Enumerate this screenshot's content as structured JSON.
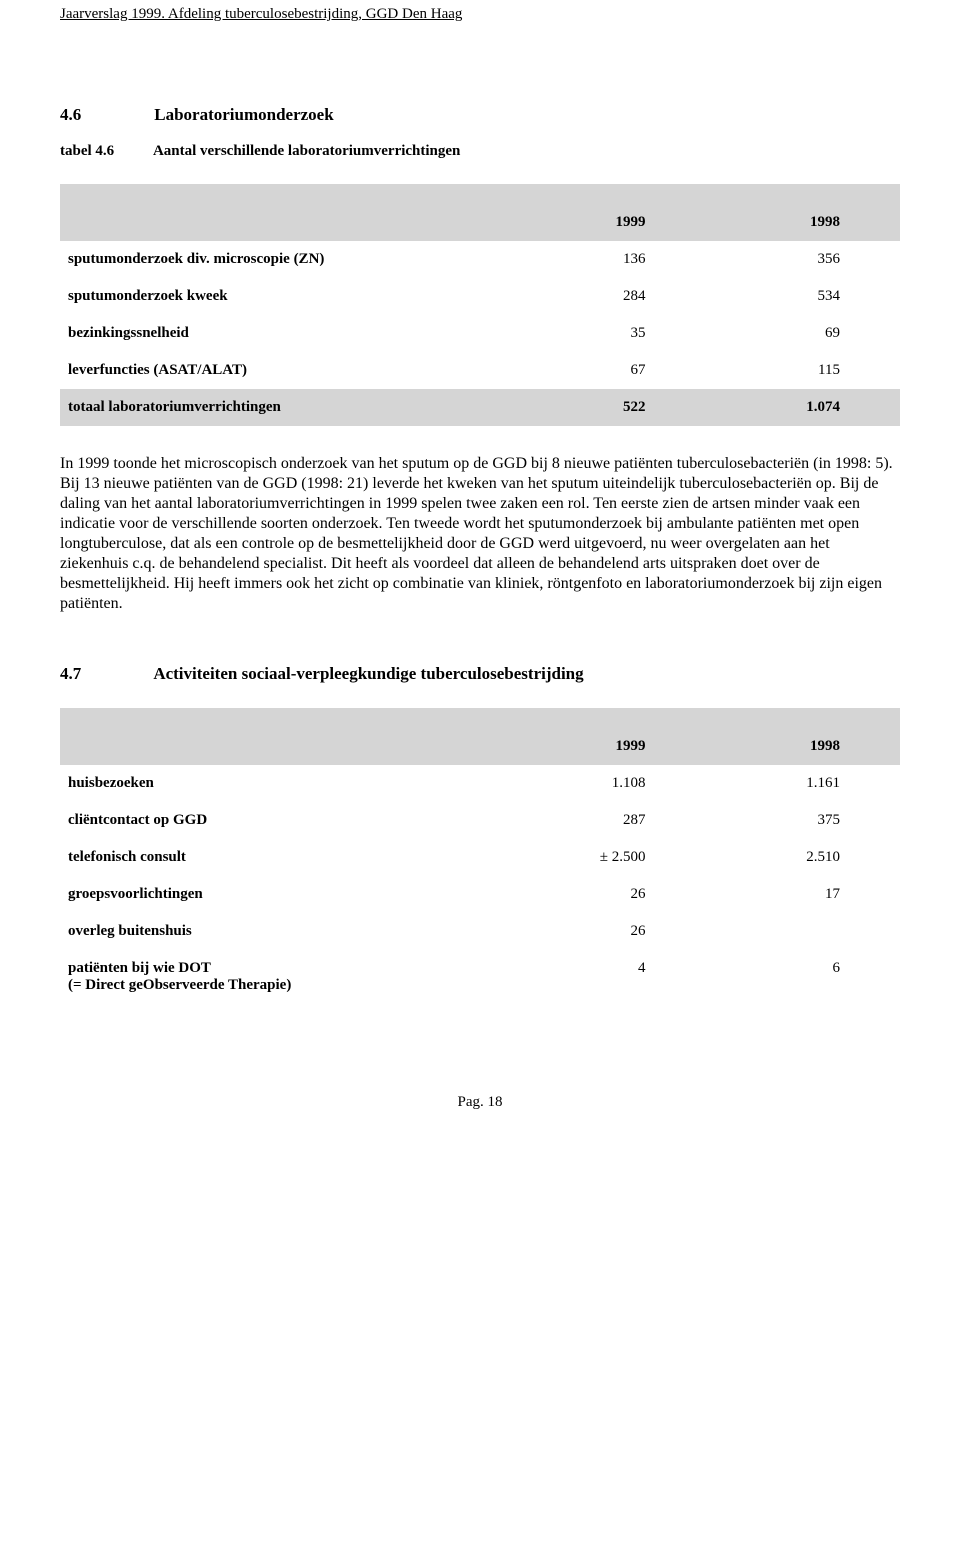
{
  "header": {
    "text": "Jaarverslag 1999. Afdeling tuberculosebestrijding, GGD Den Haag"
  },
  "section46": {
    "number": "4.6",
    "title": "Laboratoriumonderzoek",
    "caption_number": "tabel 4.6",
    "caption_text": "Aantal verschillende laboratoriumverrichtingen"
  },
  "table46": {
    "col1": "1999",
    "col2": "1998",
    "rows": [
      {
        "label": "sputumonderzoek div. microscopie (ZN)",
        "v1": "136",
        "v2": "356",
        "shaded": false
      },
      {
        "label": "sputumonderzoek kweek",
        "v1": "284",
        "v2": "534",
        "shaded": false
      },
      {
        "label": "bezinkingssnelheid",
        "v1": "35",
        "v2": "69",
        "shaded": false
      },
      {
        "label": "leverfuncties (ASAT/ALAT)",
        "v1": "67",
        "v2": "115",
        "shaded": false
      },
      {
        "label": "totaal laboratoriumverrichtingen",
        "v1": "522",
        "v2": "1.074",
        "shaded": true
      }
    ]
  },
  "paragraph": "In 1999 toonde het microscopisch onderzoek van het sputum op de GGD bij 8 nieuwe patiënten tuberculosebacteriën (in 1998: 5). Bij 13 nieuwe patiënten van de GGD (1998: 21) leverde het kweken van het sputum uiteindelijk tuberculosebacteriën op. Bij de daling van het aantal laboratoriumverrichtingen in 1999 spelen twee zaken een rol. Ten eerste zien de artsen minder vaak een indicatie voor de verschillende soorten onderzoek. Ten tweede wordt het sputumonderzoek bij ambulante patiënten met open longtuberculose, dat als een controle op de besmettelijkheid door de GGD werd uitgevoerd, nu weer overgelaten aan het ziekenhuis c.q. de behandelend specialist. Dit heeft als voordeel dat alleen de behandelend arts uitspraken doet over de besmettelijkheid. Hij heeft immers ook het zicht op combinatie van kliniek, röntgenfoto en laboratoriumonderzoek bij zijn eigen patiënten.",
  "section47": {
    "number": "4.7",
    "title": "Activiteiten sociaal-verpleegkundige tuberculosebestrijding"
  },
  "table47": {
    "col1": "1999",
    "col2": "1998",
    "rows": [
      {
        "label": "huisbezoeken",
        "v1": "1.108",
        "v2": "1.161"
      },
      {
        "label": "cliëntcontact op GGD",
        "v1": "287",
        "v2": "375"
      },
      {
        "label": "telefonisch consult",
        "v1": "± 2.500",
        "v2": "2.510"
      },
      {
        "label": "groepsvoorlichtingen",
        "v1": "26",
        "v2": "17"
      },
      {
        "label": "overleg buitenshuis",
        "v1": "26",
        "v2": ""
      },
      {
        "label": "patiënten bij wie DOT\n(= Direct geObserveerde Therapie)",
        "v1": "4",
        "v2": "6"
      }
    ]
  },
  "footer": "Pag. 18"
}
